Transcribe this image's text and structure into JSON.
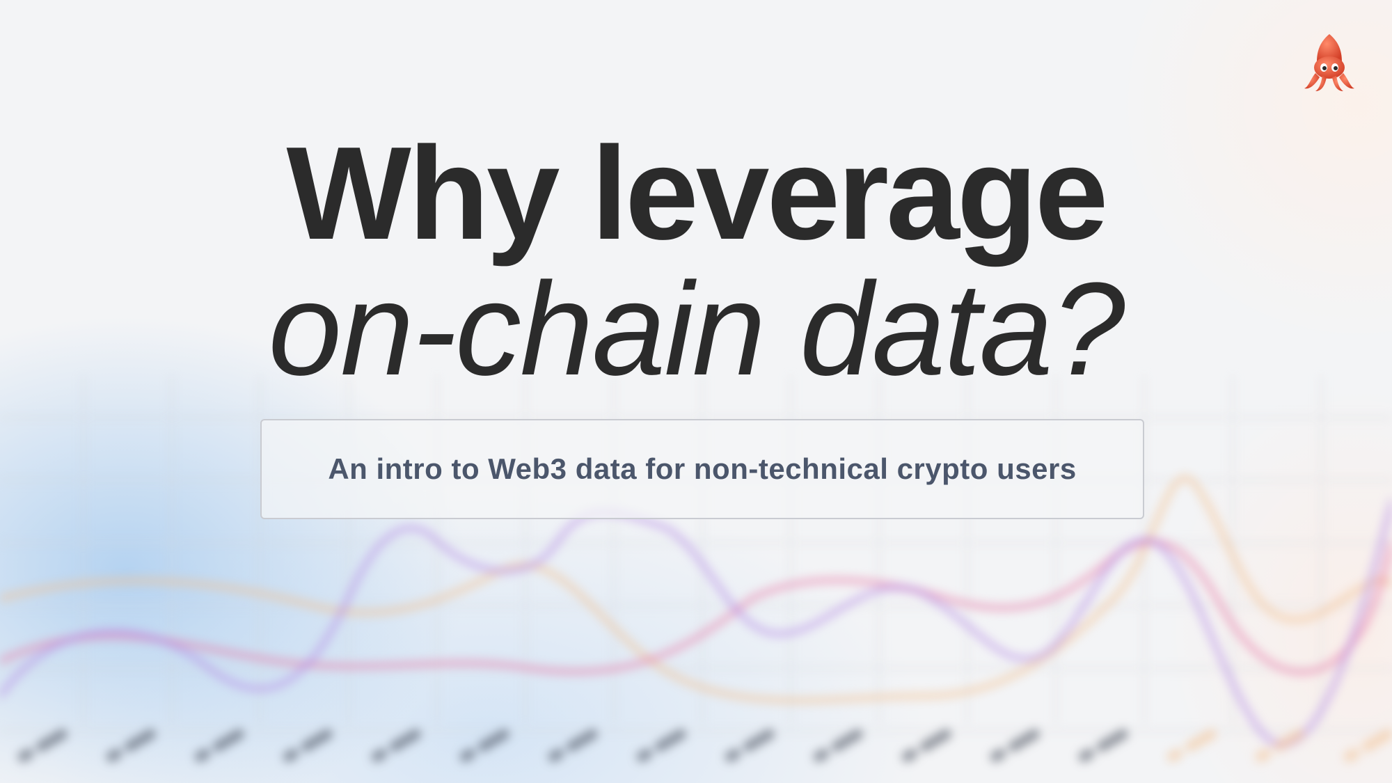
{
  "headline": {
    "line1": "Why leverage",
    "line2": "on-chain data?"
  },
  "subtitle": "An intro to Web3 data for non-technical crypto users",
  "logo": {
    "icon": "squid-icon",
    "color": "#e8553a"
  },
  "background_chart": {
    "colors": {
      "purple": "#b48ae6",
      "pink": "#e77aa8",
      "orange": "#f3c08e"
    }
  }
}
